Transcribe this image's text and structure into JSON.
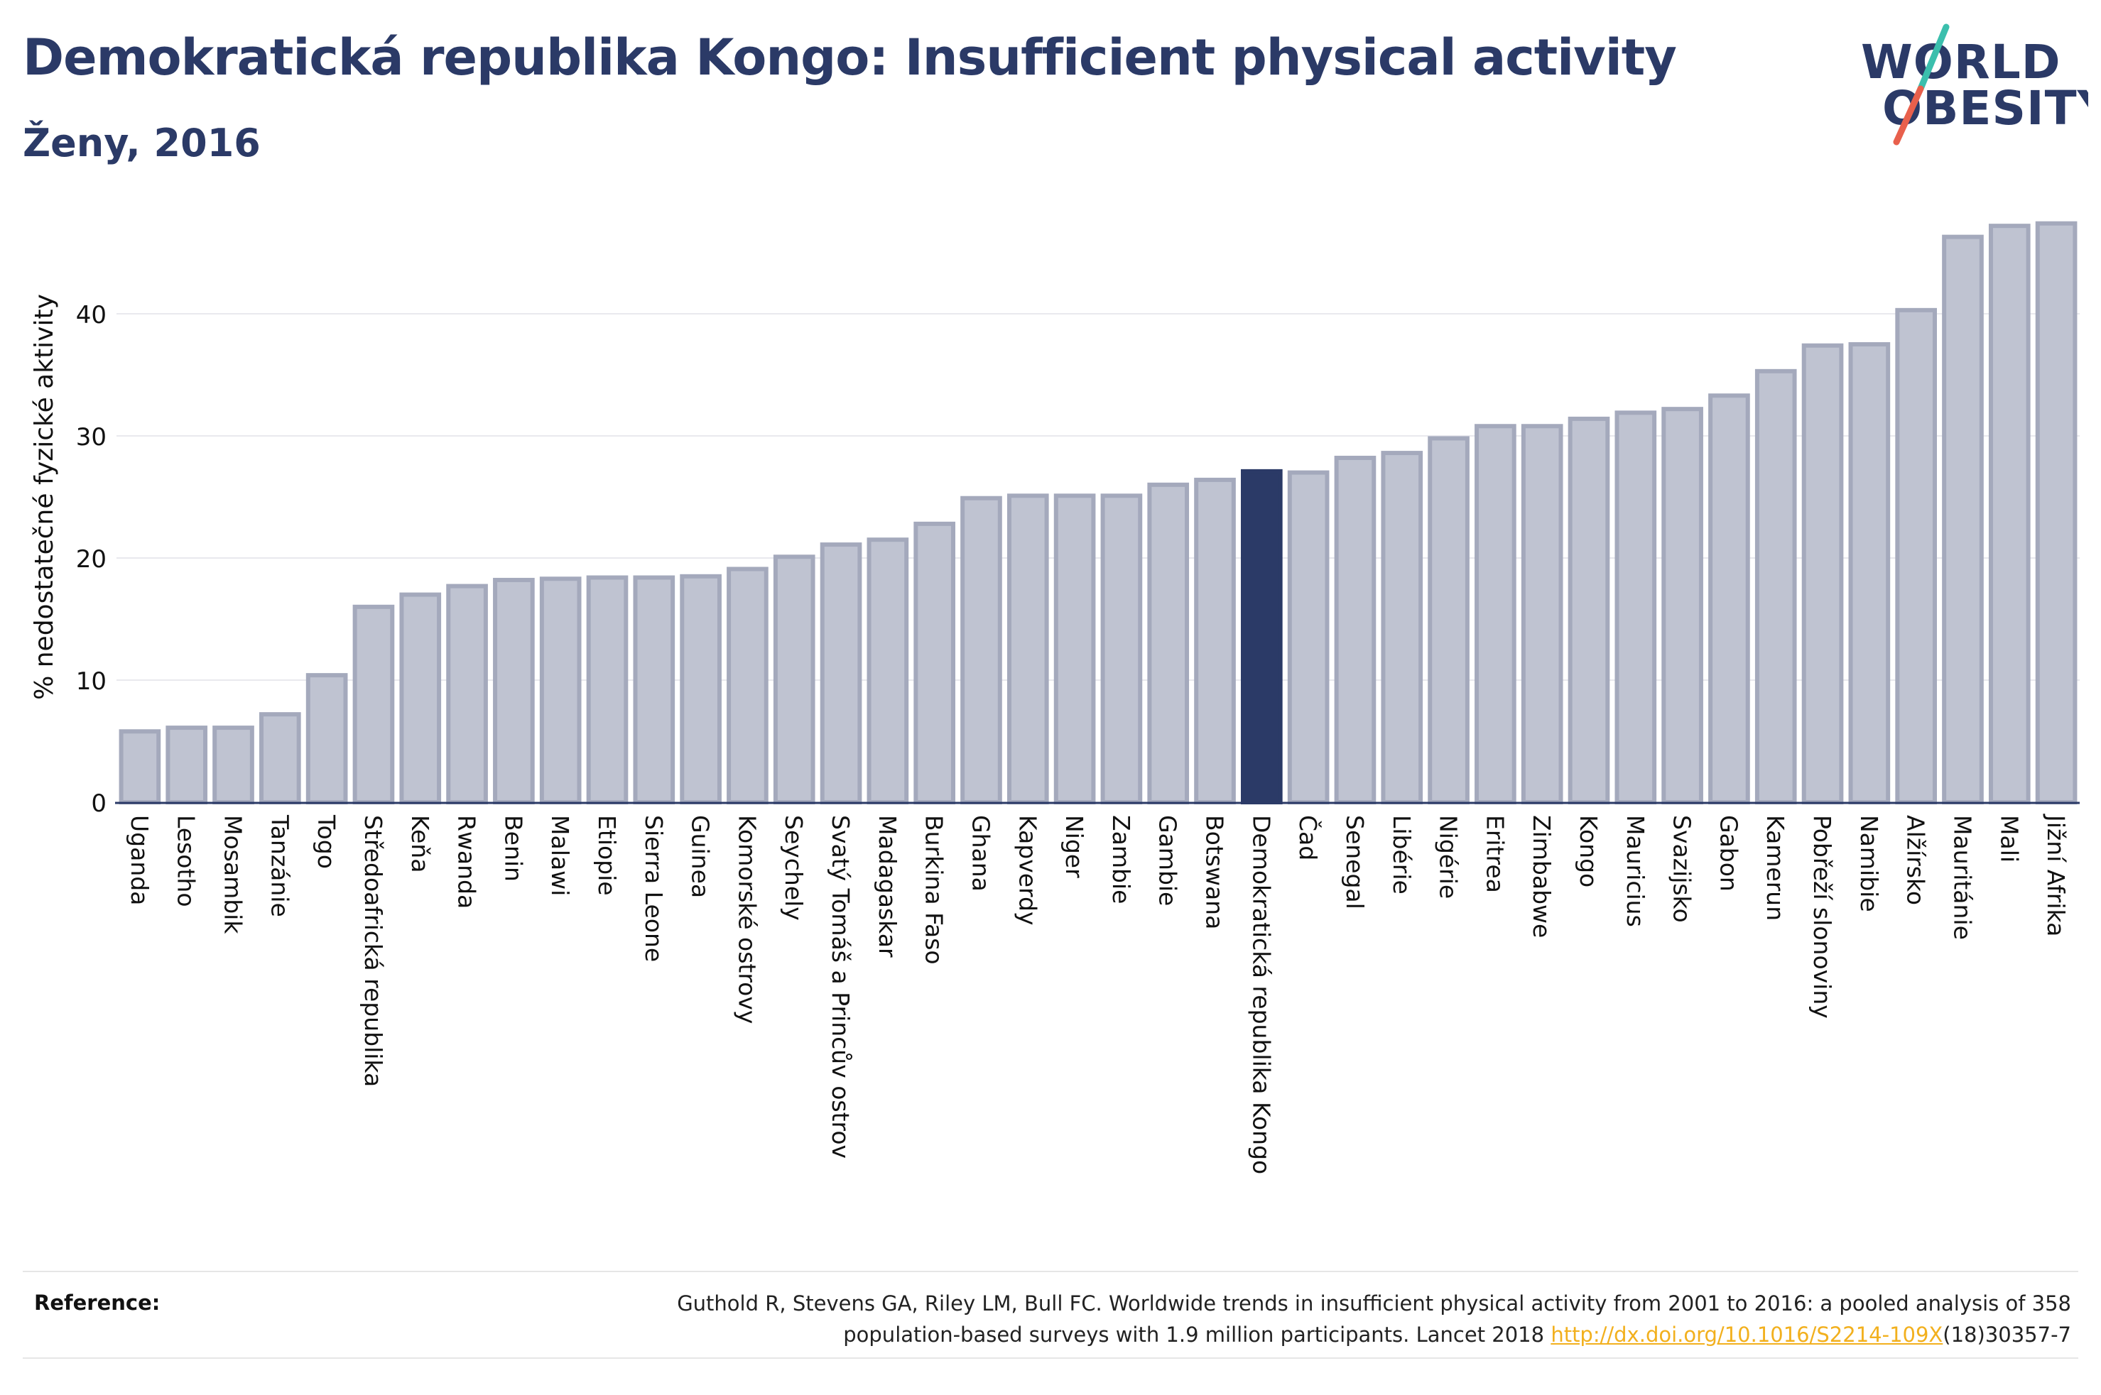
{
  "header": {
    "title": "Demokratická republika Kongo: Insufficient physical activity",
    "subtitle": "Ženy, 2016"
  },
  "logo": {
    "line1": "WORLD",
    "line2": "OBESITY",
    "colors": {
      "text": "#2b3a67",
      "slash_teal": "#3bbfad",
      "slash_red": "#e8604c"
    }
  },
  "colors": {
    "bar": "#bfc3d1",
    "bar_stroke": "#a4a9bc",
    "highlight": "#2b3a67",
    "grid": "#e9e9ee",
    "baseline": "#2b3a67"
  },
  "chart_data": {
    "type": "bar",
    "title": "Demokratická republika Kongo: Insufficient physical activity",
    "subtitle": "Ženy, 2016",
    "xlabel": "",
    "ylabel": "% nedostatečné fyzické aktivity",
    "ylim": [
      0,
      50
    ],
    "yticks": [
      0,
      10,
      20,
      30,
      40
    ],
    "grid": true,
    "highlight": "Demokratická republika Kongo",
    "categories": [
      "Uganda",
      "Lesotho",
      "Mosambik",
      "Tanzánie",
      "Togo",
      "Středoafrická republika",
      "Keňa",
      "Rwanda",
      "Benin",
      "Malawi",
      "Etiopie",
      "Sierra Leone",
      "Guinea",
      "Komorské ostrovy",
      "Seychely",
      "Svatý Tomáš a Princův ostrov",
      "Madagaskar",
      "Burkina Faso",
      "Ghana",
      "Kapverdy",
      "Niger",
      "Zambie",
      "Gambie",
      "Botswana",
      "Demokratická republika Kongo",
      "Čad",
      "Senegal",
      "Libérie",
      "Nigérie",
      "Eritrea",
      "Zimbabwe",
      "Kongo",
      "Mauricius",
      "Svazijsko",
      "Gabon",
      "Kamerun",
      "Pobřeží slonoviny",
      "Namibie",
      "Alžírsko",
      "Mauritánie",
      "Mali",
      "Jižní Afrika"
    ],
    "values": [
      5.8,
      6.1,
      6.1,
      7.2,
      10.4,
      16.0,
      17.0,
      17.7,
      18.2,
      18.3,
      18.4,
      18.4,
      18.5,
      19.1,
      20.1,
      21.1,
      21.5,
      22.8,
      24.9,
      25.1,
      25.1,
      25.1,
      26.0,
      26.4,
      27.1,
      27.0,
      28.2,
      28.6,
      29.8,
      30.8,
      30.8,
      31.4,
      31.9,
      32.2,
      33.3,
      35.3,
      37.4,
      37.5,
      40.3,
      46.3,
      47.2,
      47.4
    ]
  },
  "reference": {
    "label": "Reference:",
    "line1": "Guthold R, Stevens GA, Riley LM, Bull FC. Worldwide trends in insufficient physical activity from 2001 to 2016: a pooled analysis of 358",
    "line2_prefix": "population-based surveys with 1.9 million participants. Lancet 2018 ",
    "link": "http://dx.doi.org/10.1016/S2214-109X",
    "line2_suffix": "(18)30357-7"
  }
}
